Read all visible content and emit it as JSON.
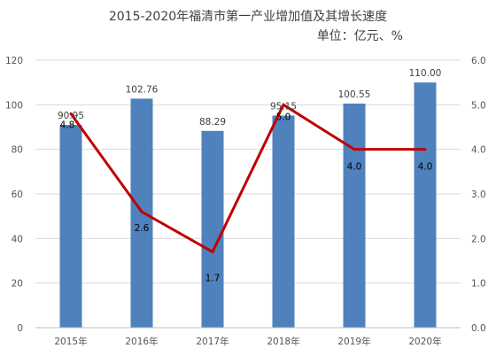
{
  "chart_data": {
    "type": "bar",
    "title": "2015-2020年福清市第一产业增加值及其增长速度",
    "unit_label": "单位：亿元、%",
    "categories": [
      "2015年",
      "2016年",
      "2017年",
      "2018年",
      "2019年",
      "2020年"
    ],
    "series": [
      {
        "type": "bar",
        "axis": "left",
        "color": "#4F81BD",
        "values": [
          90.95,
          102.76,
          88.29,
          95.15,
          100.55,
          110.0
        ],
        "labels": [
          "90.95",
          "102.76",
          "88.29",
          "95.15",
          "100.55",
          "110.00"
        ]
      },
      {
        "type": "line",
        "axis": "right",
        "color": "#C00000",
        "values": [
          4.8,
          2.6,
          1.7,
          5.0,
          4.0,
          4.0
        ],
        "labels": [
          "4.8",
          "2.6",
          "1.7",
          "5.0",
          "4.0",
          "4.0"
        ]
      }
    ],
    "ylim_left": [
      0,
      120
    ],
    "yticks_left": [
      "0",
      "20",
      "40",
      "60",
      "80",
      "100",
      "120"
    ],
    "ylim_right": [
      0,
      6
    ],
    "yticks_right": [
      "0.0",
      "1.0",
      "2.0",
      "3.0",
      "4.0",
      "5.0",
      "6.0"
    ],
    "grid": true,
    "legend": "none"
  }
}
